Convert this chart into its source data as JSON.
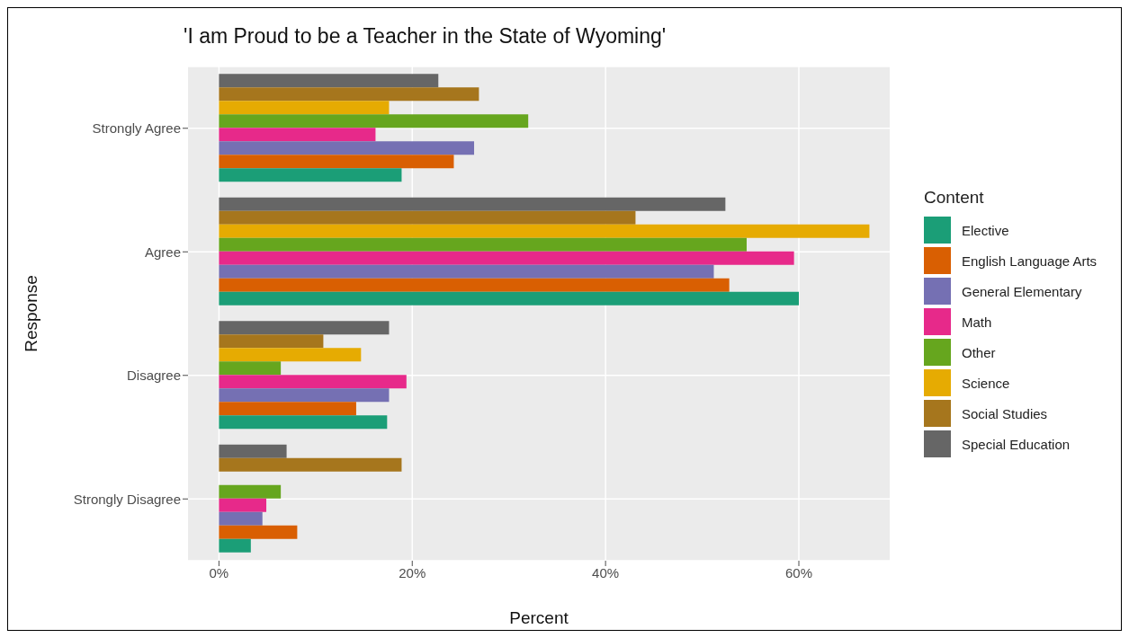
{
  "chart_data": {
    "type": "bar",
    "orientation": "horizontal",
    "title": "'I am Proud to be a Teacher in the State of Wyoming'",
    "xlabel": "Percent",
    "ylabel": "Response",
    "legend_title": "Content",
    "legend": "right",
    "grid": true,
    "categories": [
      "Strongly Agree",
      "Agree",
      "Disagree",
      "Strongly Disagree"
    ],
    "xlim": [
      -3.2,
      69.4
    ],
    "xticks": [
      {
        "value": 0,
        "label": "0%"
      },
      {
        "value": 20,
        "label": "20%"
      },
      {
        "value": 40,
        "label": "40%"
      },
      {
        "value": 60,
        "label": "60%"
      }
    ],
    "series": [
      {
        "name": "Elective",
        "color": "#1b9e77",
        "values": [
          18.9,
          60.0,
          17.4,
          3.3
        ]
      },
      {
        "name": "English Language Arts",
        "color": "#d95f02",
        "values": [
          24.3,
          52.8,
          14.2,
          8.1
        ]
      },
      {
        "name": "General Elementary",
        "color": "#7570b3",
        "values": [
          26.4,
          51.2,
          17.6,
          4.5
        ]
      },
      {
        "name": "Math",
        "color": "#e7298a",
        "values": [
          16.2,
          59.5,
          19.4,
          4.9
        ]
      },
      {
        "name": "Other",
        "color": "#66a61e",
        "values": [
          32.0,
          54.6,
          6.4,
          6.4
        ]
      },
      {
        "name": "Science",
        "color": "#e6ab02",
        "values": [
          17.6,
          67.3,
          14.7,
          null
        ]
      },
      {
        "name": "Social Studies",
        "color": "#a6761d",
        "values": [
          26.9,
          43.1,
          10.8,
          18.9
        ]
      },
      {
        "name": "Special Education",
        "color": "#666666",
        "values": [
          22.7,
          52.4,
          17.6,
          7.0
        ]
      }
    ]
  }
}
